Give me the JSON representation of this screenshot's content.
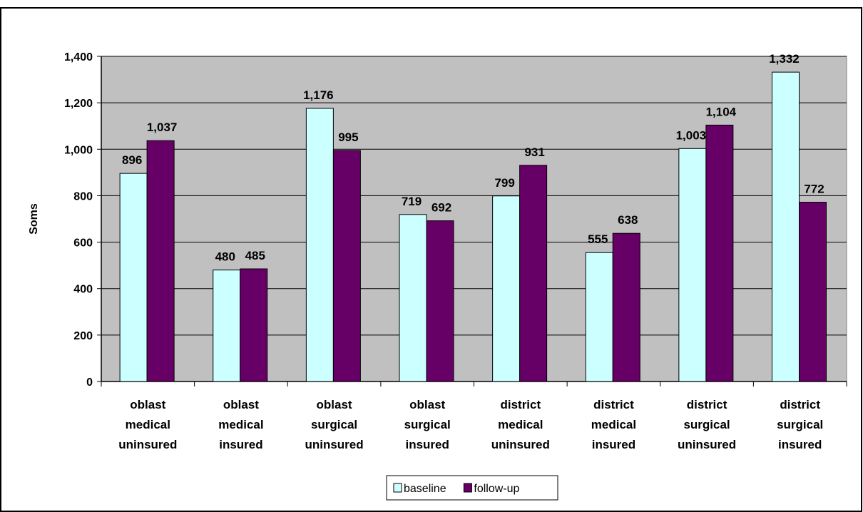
{
  "chart_data": {
    "type": "bar",
    "title": "",
    "xlabel": "",
    "ylabel": "Soms",
    "ylim": [
      0,
      1400
    ],
    "yticks": [
      0,
      200,
      400,
      600,
      800,
      1000,
      1200,
      1400
    ],
    "ytick_labels": [
      "0",
      "200",
      "400",
      "600",
      "800",
      "1,000",
      "1,200",
      "1,400"
    ],
    "grid": true,
    "legend_position": "bottom",
    "categories": [
      [
        "oblast",
        "medical",
        "uninsured"
      ],
      [
        "oblast",
        "medical",
        "insured"
      ],
      [
        "oblast",
        "surgical",
        "uninsured"
      ],
      [
        "oblast",
        "surgical",
        "insured"
      ],
      [
        "district",
        "medical",
        "uninsured"
      ],
      [
        "district",
        "medical",
        "insured"
      ],
      [
        "district",
        "surgical",
        "uninsured"
      ],
      [
        "district",
        "surgical",
        "insured"
      ]
    ],
    "series": [
      {
        "name": "baseline",
        "color": "#ccffff",
        "values": [
          896,
          480,
          1176,
          719,
          799,
          555,
          1003,
          1332
        ],
        "value_labels": [
          "896",
          "480",
          "1,176",
          "719",
          "799",
          "555",
          "1,003",
          "1,332"
        ]
      },
      {
        "name": "follow-up",
        "color": "#660066",
        "values": [
          1037,
          485,
          995,
          692,
          931,
          638,
          1104,
          772
        ],
        "value_labels": [
          "1,037",
          "485",
          "995",
          "692",
          "931",
          "638",
          "1,104",
          "772"
        ]
      }
    ],
    "plot_background": "#c0c0c0"
  }
}
